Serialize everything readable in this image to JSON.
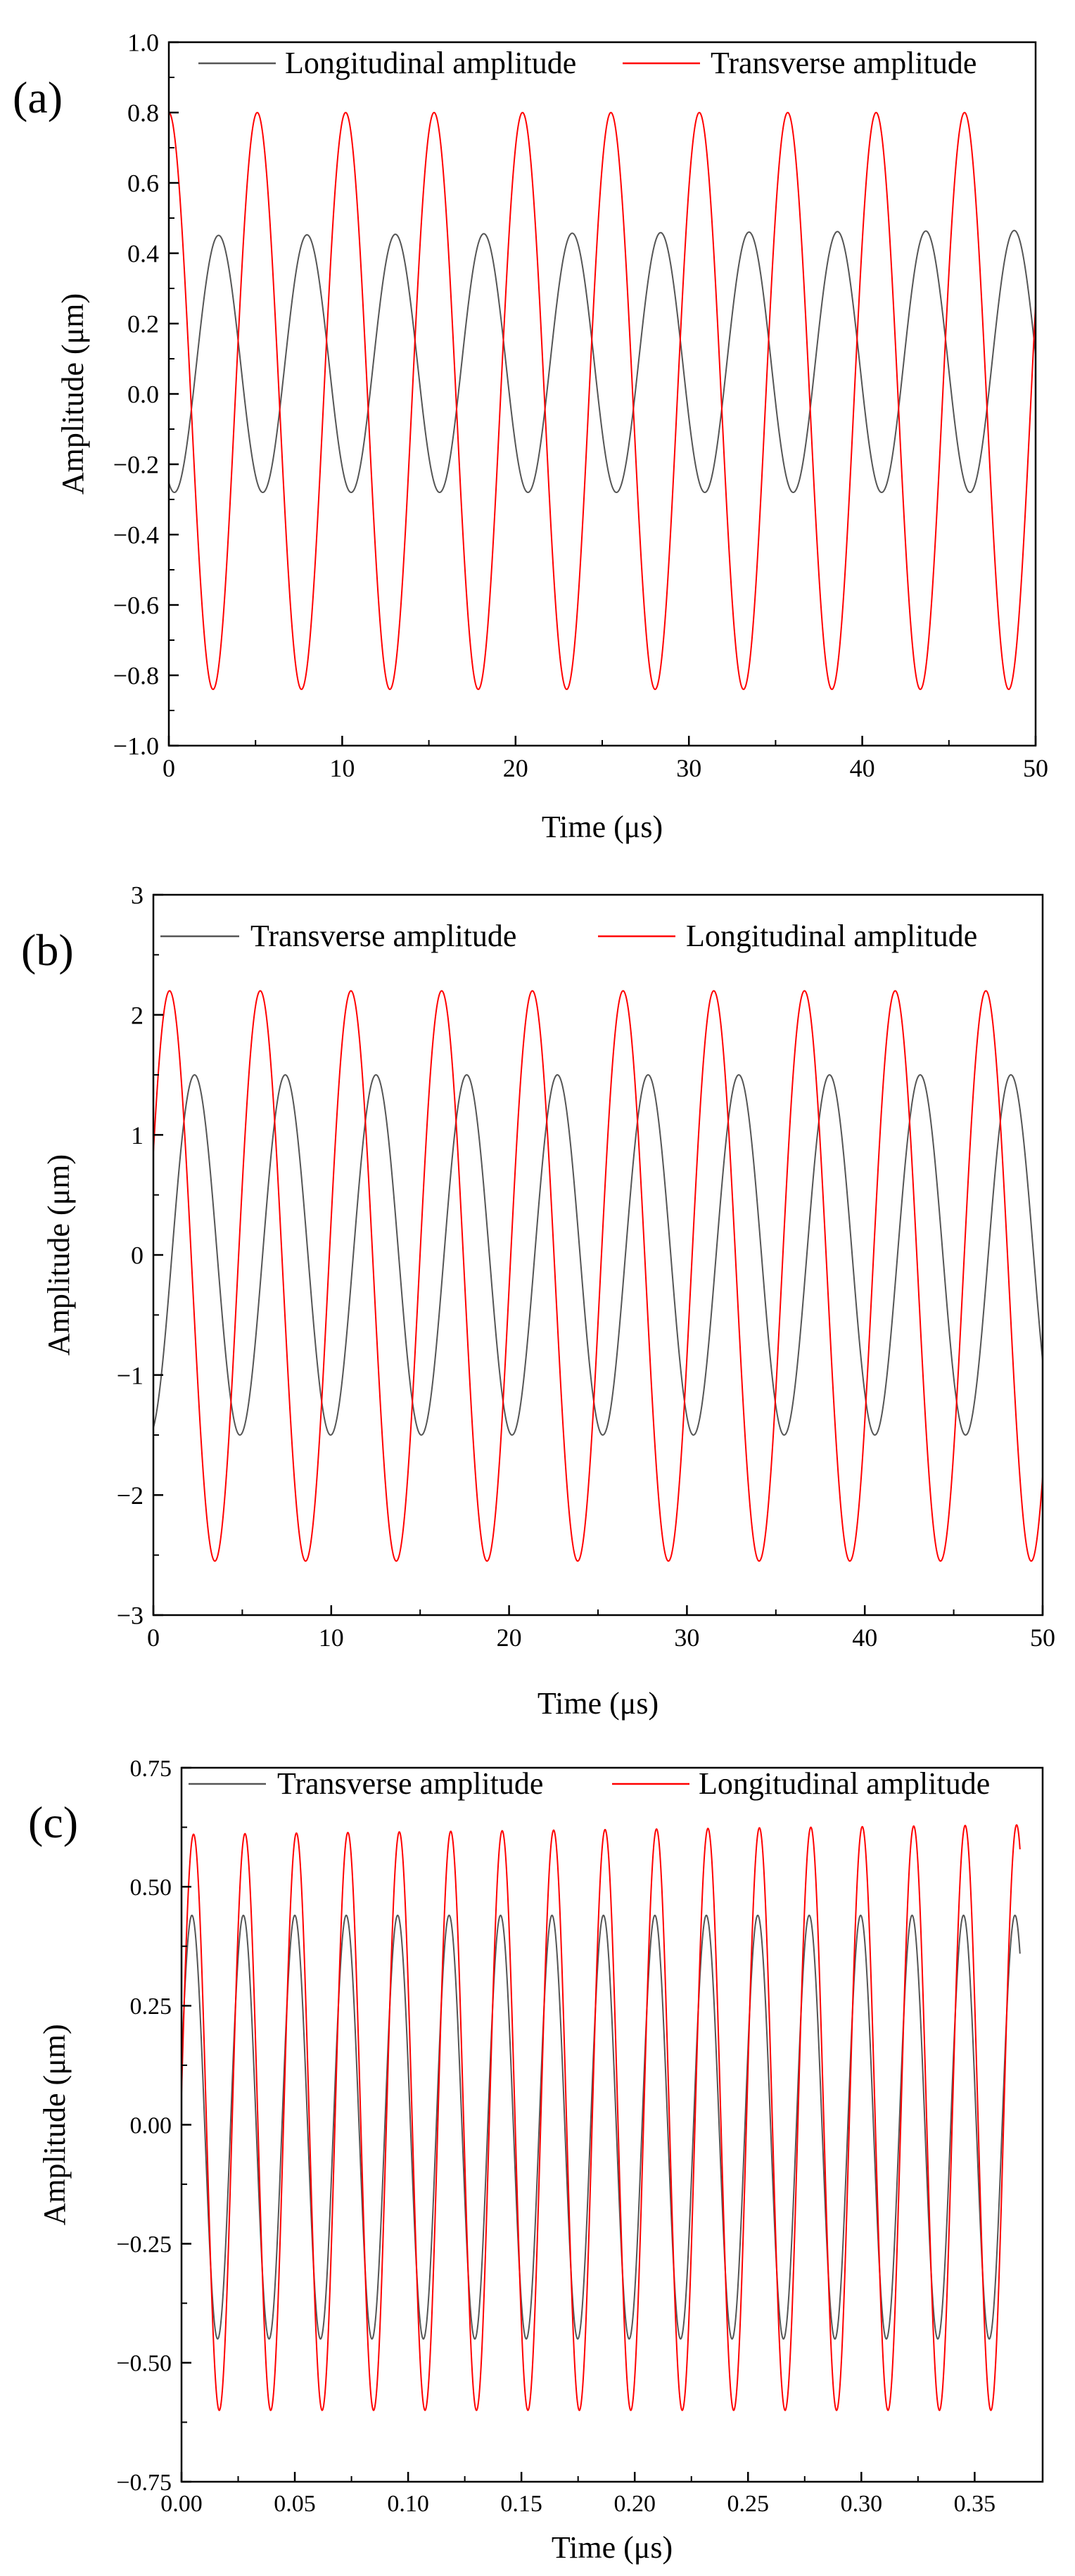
{
  "colors": {
    "black_series": "#555555",
    "red_series": "#ff0000",
    "axis": "#000000",
    "background": "#ffffff"
  },
  "chart_data": [
    {
      "type": "line",
      "panel_label": "(a)",
      "xlabel": "Time (μs)",
      "ylabel": "Amplitude (μm)",
      "xlim": [
        0,
        50
      ],
      "ylim": [
        -1.0,
        1.0
      ],
      "xticks": [
        0,
        10,
        20,
        30,
        40,
        50
      ],
      "xtick_labels": [
        "0",
        "10",
        "20",
        "30",
        "40",
        "50"
      ],
      "yticks": [
        -1.0,
        -0.8,
        -0.6,
        -0.4,
        -0.2,
        0.0,
        0.2,
        0.4,
        0.6,
        0.8,
        1.0
      ],
      "ytick_labels": [
        "−1.0",
        "−0.8",
        "−0.6",
        "−0.4",
        "−0.2",
        "0.0",
        "0.2",
        "0.4",
        "0.6",
        "0.8",
        "1.0"
      ],
      "grid": false,
      "legend_position": "top",
      "series": [
        {
          "name": "Longitudinal amplitude",
          "color": "#555555",
          "period": 5.1,
          "phase": 4.32,
          "min": -0.28,
          "max": 0.45,
          "max_end": 0.465,
          "x_start": 0,
          "x_end": 50
        },
        {
          "name": "Transverse amplitude",
          "color": "#ff0000",
          "period": 5.1,
          "phase": 1.57,
          "min": -0.84,
          "max": 0.8,
          "max_end": 0.8,
          "x_start": 0,
          "x_end": 50
        }
      ]
    },
    {
      "type": "line",
      "panel_label": "(b)",
      "xlabel": "Time (μs)",
      "ylabel": "Amplitude (μm)",
      "xlim": [
        0,
        50
      ],
      "ylim": [
        -3,
        3
      ],
      "xticks": [
        0,
        10,
        20,
        30,
        40,
        50
      ],
      "xtick_labels": [
        "0",
        "10",
        "20",
        "30",
        "40",
        "50"
      ],
      "yticks": [
        -3,
        -2,
        -1,
        0,
        1,
        2,
        3
      ],
      "ytick_labels": [
        "−3",
        "−2",
        "−1",
        "0",
        "1",
        "2",
        "3"
      ],
      "grid": false,
      "legend_position": "top",
      "series": [
        {
          "name": "Transverse amplitude",
          "color": "#555555",
          "period": 5.1,
          "phase": 5.0,
          "min": -1.5,
          "max": 1.5,
          "max_end": 1.5,
          "x_start": 0,
          "x_end": 50
        },
        {
          "name": "Longitudinal amplitude",
          "color": "#ff0000",
          "period": 5.1,
          "phase": 0.45,
          "min": -2.55,
          "max": 2.2,
          "max_end": 2.2,
          "x_start": 0,
          "x_end": 50
        }
      ]
    },
    {
      "type": "line",
      "panel_label": "(c)",
      "xlabel": "Time (μs)",
      "ylabel": "Amplitude (μm)",
      "xlim": [
        0,
        0.38
      ],
      "ylim": [
        -0.75,
        0.75
      ],
      "xticks": [
        0.0,
        0.05,
        0.1,
        0.15,
        0.2,
        0.25,
        0.3,
        0.35
      ],
      "xtick_labels": [
        "0.00",
        "0.05",
        "0.10",
        "0.15",
        "0.20",
        "0.25",
        "0.30",
        "0.35"
      ],
      "yticks": [
        -0.75,
        -0.5,
        -0.25,
        0.0,
        0.25,
        0.5,
        0.75
      ],
      "ytick_labels": [
        "−0.75",
        "−0.50",
        "−0.25",
        "0.00",
        "0.25",
        "0.50",
        "0.75"
      ],
      "grid": false,
      "legend_position": "top",
      "series": [
        {
          "name": "Transverse amplitude",
          "color": "#555555",
          "period": 0.0227,
          "phase": 0.3,
          "min": -0.45,
          "max": 0.44,
          "max_end": 0.44,
          "x_start": 0,
          "x_end": 0.37
        },
        {
          "name": "Longitudinal amplitude",
          "color": "#ff0000",
          "period": 0.0227,
          "phase": 0.1,
          "min": -0.6,
          "max": 0.61,
          "max_end": 0.63,
          "x_start": 0,
          "x_end": 0.37
        }
      ]
    }
  ]
}
